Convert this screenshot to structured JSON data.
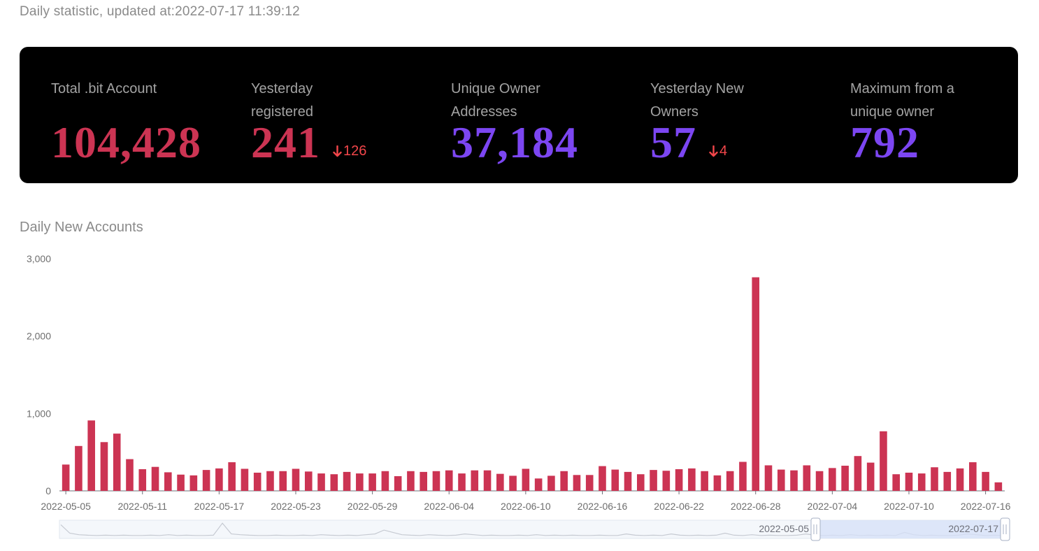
{
  "header": {
    "updated_text": "Daily statistic, updated at:2022-07-17 11:39:12"
  },
  "stats": [
    {
      "label": "Total .bit Account",
      "value": "104,428",
      "color": "#cc3453",
      "delta": ""
    },
    {
      "label": "Yesterday registered",
      "value": "241",
      "color": "#cc3453",
      "delta": "126",
      "delta_direction": "down"
    },
    {
      "label": "Unique Owner Addresses",
      "value": "37,184",
      "color": "#7c46f2",
      "delta": ""
    },
    {
      "label": "Yesterday New Owners",
      "value": "57",
      "color": "#7c46f2",
      "delta": "4",
      "delta_direction": "down"
    },
    {
      "label": "Maximum from a unique owner",
      "value": "792",
      "color": "#7c46f2",
      "delta": ""
    }
  ],
  "colors": {
    "bar": "#cc3453",
    "accent_purple": "#7c46f2",
    "delta_down": "#f2464a",
    "panel_background": "#000000",
    "zoom_selection": "#d6e0f8"
  },
  "chart_title": "Daily New Accounts",
  "chart_data": {
    "type": "bar",
    "title": "Daily New Accounts",
    "xlabel": "",
    "ylabel": "",
    "ylim": [
      0,
      3000
    ],
    "y_ticks": [
      "0",
      "1,000",
      "2,000",
      "3,000"
    ],
    "x_tick_labels": [
      "2022-05-05",
      "2022-05-11",
      "2022-05-17",
      "2022-05-23",
      "2022-05-29",
      "2022-06-04",
      "2022-06-10",
      "2022-06-16",
      "2022-06-22",
      "2022-06-28",
      "2022-07-04",
      "2022-07-10",
      "2022-07-16"
    ],
    "grid": false,
    "legend": "none",
    "start_date": "2022-05-05",
    "end_date": "2022-07-17",
    "values": [
      340,
      580,
      910,
      630,
      740,
      410,
      280,
      310,
      240,
      210,
      200,
      270,
      290,
      370,
      285,
      235,
      255,
      255,
      285,
      250,
      225,
      215,
      245,
      225,
      225,
      255,
      190,
      255,
      245,
      255,
      265,
      225,
      265,
      265,
      220,
      195,
      285,
      160,
      195,
      255,
      205,
      205,
      320,
      275,
      245,
      215,
      270,
      260,
      280,
      290,
      255,
      200,
      255,
      375,
      2760,
      330,
      275,
      265,
      330,
      255,
      295,
      325,
      450,
      365,
      770,
      215,
      235,
      225,
      305,
      245,
      290,
      370,
      245,
      110
    ],
    "zoom_range_labels": [
      "2022-05-05",
      "2022-07-17"
    ]
  }
}
